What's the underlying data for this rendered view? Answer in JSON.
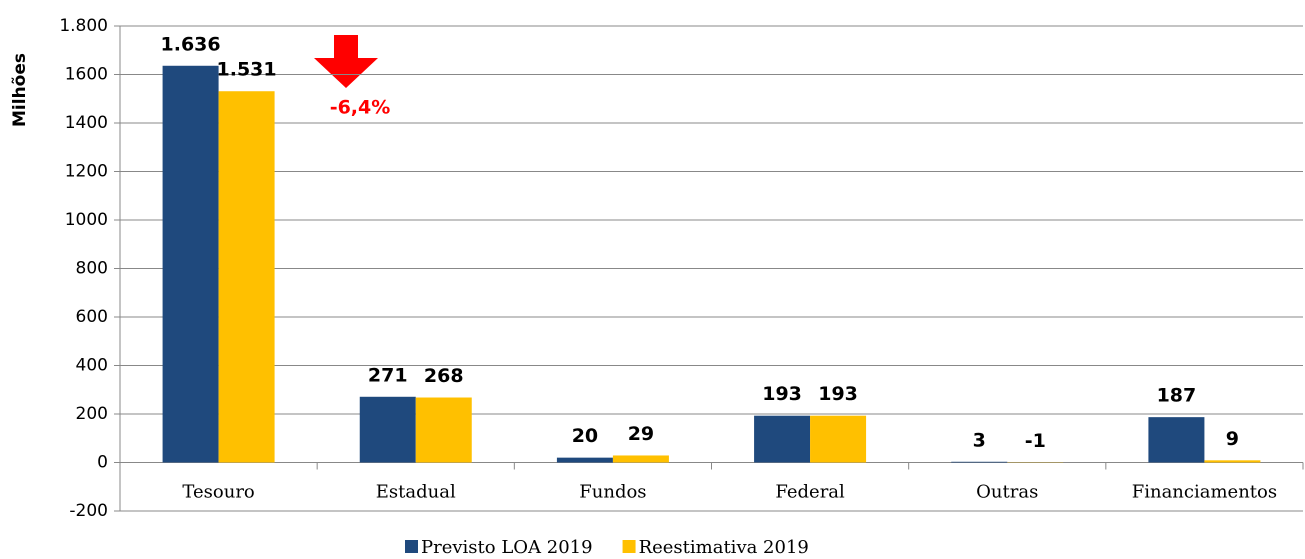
{
  "chart_data": {
    "type": "bar",
    "y_label": "Milhões",
    "annotation": "-6,4%",
    "categories": [
      "Tesouro",
      "Estadual",
      "Fundos",
      "Federal",
      "Outras",
      "Financiamentos"
    ],
    "series": [
      {
        "name": "Previsto LOA 2019",
        "color": "#1f497d",
        "values": [
          1636,
          271,
          20,
          193,
          3,
          187
        ],
        "value_labels": [
          "1.636",
          "271",
          "20",
          "193",
          "3",
          "187"
        ]
      },
      {
        "name": "Reestimativa 2019",
        "color": "#ffc000",
        "values": [
          1531,
          268,
          29,
          193,
          -1,
          9
        ],
        "value_labels": [
          "1.531",
          "268",
          "29",
          "193",
          "-1",
          "9"
        ]
      }
    ],
    "ylim": [
      -200,
      1800
    ],
    "yticks": [
      -200,
      0,
      200,
      400,
      600,
      800,
      1000,
      1200,
      1400,
      1600,
      {
        "value": 1800,
        "label": "1.800"
      }
    ],
    "grid": true
  }
}
